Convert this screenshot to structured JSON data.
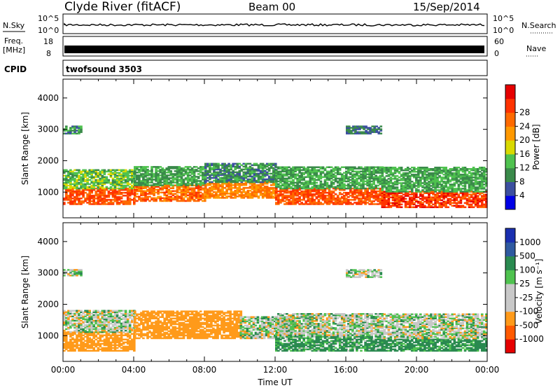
{
  "header": {
    "station": "Clyde River (fitACF)",
    "beam": "Beam 00",
    "date": "15/Sep/2014"
  },
  "strips": {
    "nsky_label": "N.Sky",
    "nsky_top": "10^5",
    "nsky_bottom": "10^0",
    "nsearch_label": "N.Search",
    "nsearch_top": "10^5",
    "nsearch_bottom": "10^0",
    "freq_label": "Freq.",
    "freq_unit": "[MHz]",
    "freq_top": "18",
    "freq_bottom": "8",
    "nave_label": "Nave",
    "nave_top": "60",
    "nave_bottom": "0",
    "cpid_label": "CPID",
    "cpid_value": "twofsound 3503"
  },
  "colors": {
    "power_scale": [
      "#0000e6",
      "#3c4fa0",
      "#3a8a4a",
      "#4fc24f",
      "#d9d900",
      "#ff9900",
      "#ff6a00",
      "#ff3300",
      "#e60000"
    ],
    "velocity_scale": [
      "#e60000",
      "#ff5a00",
      "#ff9a1a",
      "#c8c8c8",
      "#c8c8c8",
      "#4fc24f",
      "#2a8a50",
      "#2f5aa0",
      "#1a2fb0"
    ]
  },
  "chart_data": [
    {
      "type": "heatmap",
      "title": "Power",
      "ylabel": "Slant Range [km]",
      "xlabel": "Time UT",
      "x_ticks": [
        "00:00",
        "04:00",
        "08:00",
        "12:00",
        "16:00",
        "20:00",
        "00:00"
      ],
      "y_ticks": [
        1000,
        2000,
        3000,
        4000
      ],
      "ylim": [
        180,
        4600
      ],
      "xlim_hours": [
        0,
        24
      ],
      "colorbar_label": "Power [dB]",
      "colorbar_ticks": [
        4,
        8,
        12,
        16,
        20,
        24,
        28
      ],
      "bands": [
        {
          "t0": 0,
          "t1": 4,
          "r0": 600,
          "r1": 1100,
          "value": 28
        },
        {
          "t0": 0,
          "t1": 4,
          "r0": 1100,
          "r1": 1700,
          "value": 14
        },
        {
          "t0": 4,
          "t1": 8,
          "r0": 700,
          "r1": 1200,
          "value": 26
        },
        {
          "t0": 4,
          "t1": 8,
          "r0": 1200,
          "r1": 1800,
          "value": 12
        },
        {
          "t0": 8,
          "t1": 12,
          "r0": 800,
          "r1": 1300,
          "value": 24
        },
        {
          "t0": 8,
          "t1": 12,
          "r0": 1300,
          "r1": 1900,
          "value": 10
        },
        {
          "t0": 12,
          "t1": 18,
          "r0": 600,
          "r1": 1100,
          "value": 28
        },
        {
          "t0": 12,
          "t1": 18,
          "r0": 1100,
          "r1": 1800,
          "value": 12
        },
        {
          "t0": 18,
          "t1": 24,
          "r0": 500,
          "r1": 1000,
          "value": 30
        },
        {
          "t0": 18,
          "t1": 24,
          "r0": 1000,
          "r1": 1800,
          "value": 12
        },
        {
          "t0": 0,
          "t1": 1,
          "r0": 2850,
          "r1": 3100,
          "value": 10
        },
        {
          "t0": 16,
          "t1": 18,
          "r0": 2850,
          "r1": 3100,
          "value": 8
        }
      ]
    },
    {
      "type": "heatmap",
      "title": "Velocity",
      "ylabel": "Slant Range [km]",
      "xlabel": "Time UT",
      "x_ticks": [
        "00:00",
        "04:00",
        "08:00",
        "12:00",
        "16:00",
        "20:00",
        "00:00"
      ],
      "y_ticks": [
        1000,
        2000,
        3000,
        4000
      ],
      "ylim": [
        180,
        4600
      ],
      "xlim_hours": [
        0,
        24
      ],
      "colorbar_label": "Velocity [m s⁻¹]",
      "colorbar_ticks": [
        1000,
        500,
        100,
        25,
        -25,
        -100,
        -500,
        -1000
      ],
      "bands": [
        {
          "t0": 0,
          "t1": 4,
          "r0": 500,
          "r1": 1100,
          "value": -300
        },
        {
          "t0": 0,
          "t1": 4,
          "r0": 1100,
          "r1": 1800,
          "value": 0
        },
        {
          "t0": 4,
          "t1": 10,
          "r0": 900,
          "r1": 1800,
          "value": -300
        },
        {
          "t0": 10,
          "t1": 13,
          "r0": 900,
          "r1": 1600,
          "value": 0
        },
        {
          "t0": 12,
          "t1": 18,
          "r0": 500,
          "r1": 1000,
          "value": 150
        },
        {
          "t0": 12,
          "t1": 18,
          "r0": 1000,
          "r1": 1700,
          "value": 0
        },
        {
          "t0": 18,
          "t1": 24,
          "r0": 500,
          "r1": 900,
          "value": 200
        },
        {
          "t0": 18,
          "t1": 24,
          "r0": 900,
          "r1": 1700,
          "value": 0
        },
        {
          "t0": 0,
          "t1": 1,
          "r0": 2900,
          "r1": 3100,
          "value": 0
        },
        {
          "t0": 16,
          "t1": 18,
          "r0": 2850,
          "r1": 3100,
          "value": 0
        }
      ]
    }
  ]
}
